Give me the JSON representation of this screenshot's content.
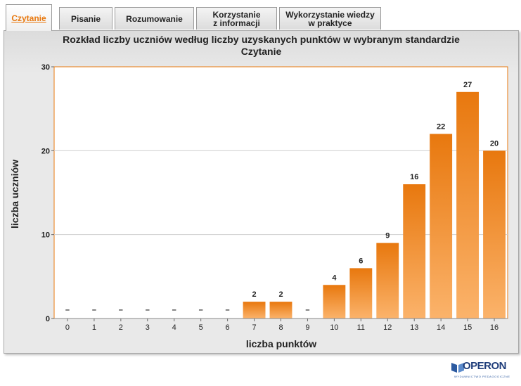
{
  "tabs": [
    {
      "label": "Czytanie",
      "active": true
    },
    {
      "label": "Pisanie",
      "active": false
    },
    {
      "label": "Rozumowanie",
      "active": false
    },
    {
      "label": "Korzystanie\nz informacji",
      "active": false
    },
    {
      "label": "Wykorzystanie wiedzy\nw praktyce",
      "active": false
    }
  ],
  "chart_data": {
    "type": "bar",
    "title": "Rozkład liczby uczniów według liczby uzyskanych punktów w wybranym standardzie",
    "subtitle": "Czytanie",
    "xlabel": "liczba punktów",
    "ylabel": "liczba uczniów",
    "categories": [
      "0",
      "1",
      "2",
      "3",
      "4",
      "5",
      "6",
      "7",
      "8",
      "9",
      "10",
      "11",
      "12",
      "13",
      "14",
      "15",
      "16"
    ],
    "values": [
      0,
      0,
      0,
      0,
      0,
      0,
      0,
      2,
      2,
      0,
      4,
      6,
      9,
      16,
      22,
      27,
      20
    ],
    "data_labels": [
      "–",
      "–",
      "–",
      "–",
      "–",
      "–",
      "–",
      "2",
      "2",
      "–",
      "4",
      "6",
      "9",
      "16",
      "22",
      "27",
      "20"
    ],
    "ylim": [
      0,
      30
    ],
    "yticks": [
      "0",
      "10",
      "20",
      "30"
    ],
    "grid": true,
    "colors": {
      "bar_light": "#fbb36b",
      "bar_dark": "#e8780e",
      "plot_border": "#e8780e"
    }
  },
  "footer": {
    "logo_text": "OPERON",
    "logo_sub": "WYDAWNICTWO PEDAGOGICZNE"
  }
}
